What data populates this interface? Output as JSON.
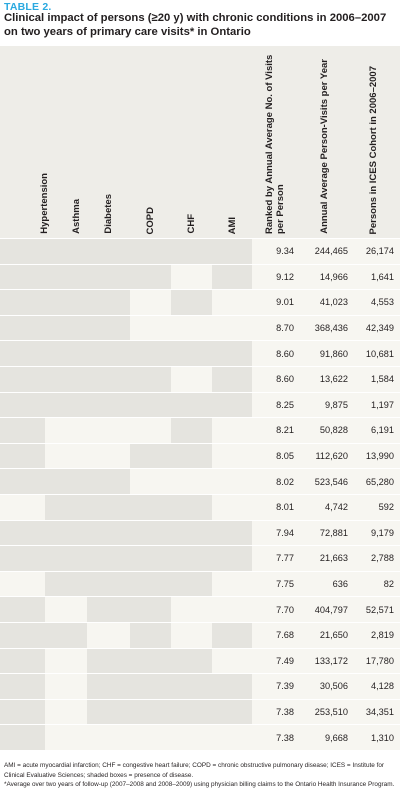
{
  "table_label": "TABLE 2.",
  "title": "Clinical impact of persons (≥20 y) with chronic conditions in 2006–2007 on two years of primary care visits* in Ontario",
  "columns": [
    "Hypertension",
    "Asthma",
    "Diabetes",
    "COPD",
    "CHF",
    "AMI",
    "Ranked by Annual Average No. of Visits per Person",
    "Annual Average Person-Visits per Year",
    "Persons in ICES Cohort in 2006–2007"
  ],
  "rows": [
    {
      "conditions": [
        1,
        1,
        1,
        1,
        1,
        1
      ],
      "rank": "9.34",
      "visits": "244,465",
      "persons": "26,174"
    },
    {
      "conditions": [
        1,
        1,
        1,
        1,
        0,
        1
      ],
      "rank": "9.12",
      "visits": "14,966",
      "persons": "1,641"
    },
    {
      "conditions": [
        1,
        1,
        1,
        0,
        1,
        0
      ],
      "rank": "9.01",
      "visits": "41,023",
      "persons": "4,553"
    },
    {
      "conditions": [
        1,
        1,
        1,
        0,
        0,
        0
      ],
      "rank": "8.70",
      "visits": "368,436",
      "persons": "42,349"
    },
    {
      "conditions": [
        1,
        1,
        1,
        1,
        1,
        1
      ],
      "rank": "8.60",
      "visits": "91,860",
      "persons": "10,681"
    },
    {
      "conditions": [
        1,
        1,
        1,
        1,
        0,
        1
      ],
      "rank": "8.60",
      "visits": "13,622",
      "persons": "1,584"
    },
    {
      "conditions": [
        1,
        1,
        1,
        1,
        1,
        1
      ],
      "rank": "8.25",
      "visits": "9,875",
      "persons": "1,197"
    },
    {
      "conditions": [
        1,
        0,
        0,
        0,
        1,
        0
      ],
      "rank": "8.21",
      "visits": "50,828",
      "persons": "6,191"
    },
    {
      "conditions": [
        1,
        0,
        0,
        1,
        1,
        0
      ],
      "rank": "8.05",
      "visits": "112,620",
      "persons": "13,990"
    },
    {
      "conditions": [
        1,
        1,
        1,
        0,
        0,
        0
      ],
      "rank": "8.02",
      "visits": "523,546",
      "persons": "65,280"
    },
    {
      "conditions": [
        0,
        1,
        1,
        1,
        1,
        0
      ],
      "rank": "8.01",
      "visits": "4,742",
      "persons": "592"
    },
    {
      "conditions": [
        1,
        1,
        1,
        1,
        1,
        1
      ],
      "rank": "7.94",
      "visits": "72,881",
      "persons": "9,179"
    },
    {
      "conditions": [
        1,
        1,
        1,
        1,
        1,
        1
      ],
      "rank": "7.77",
      "visits": "21,663",
      "persons": "2,788"
    },
    {
      "conditions": [
        0,
        1,
        1,
        1,
        1,
        0
      ],
      "rank": "7.75",
      "visits": "636",
      "persons": "82"
    },
    {
      "conditions": [
        1,
        0,
        1,
        1,
        0,
        0
      ],
      "rank": "7.70",
      "visits": "404,797",
      "persons": "52,571"
    },
    {
      "conditions": [
        1,
        1,
        0,
        1,
        0,
        1
      ],
      "rank": "7.68",
      "visits": "21,650",
      "persons": "2,819"
    },
    {
      "conditions": [
        1,
        0,
        1,
        1,
        1,
        0
      ],
      "rank": "7.49",
      "visits": "133,172",
      "persons": "17,780"
    },
    {
      "conditions": [
        1,
        0,
        1,
        1,
        1,
        1
      ],
      "rank": "7.39",
      "visits": "30,506",
      "persons": "4,128"
    },
    {
      "conditions": [
        1,
        0,
        1,
        1,
        1,
        1
      ],
      "rank": "7.38",
      "visits": "253,510",
      "persons": "34,351"
    },
    {
      "conditions": [
        1,
        0,
        0,
        0,
        0,
        0
      ],
      "rank": "7.38",
      "visits": "9,668",
      "persons": "1,310"
    }
  ],
  "footnotes": [
    "AMI = acute myocardial infarction; CHF = congestive heart failure; COPD = chronic obstructive pulmonary disease; ICES = Institute for Clinical Evaluative Sciences; shaded boxes = presence of disease.",
    "*Average over two years of follow-up (2007–2008 and 2008–2009) using physician billing claims to the Ontario Health Insurance Program."
  ],
  "colors": {
    "shaded": "#e5e4df",
    "plain": "#f7f6f1",
    "header_bg": "#eeede8",
    "label": "#2aa9e0"
  }
}
